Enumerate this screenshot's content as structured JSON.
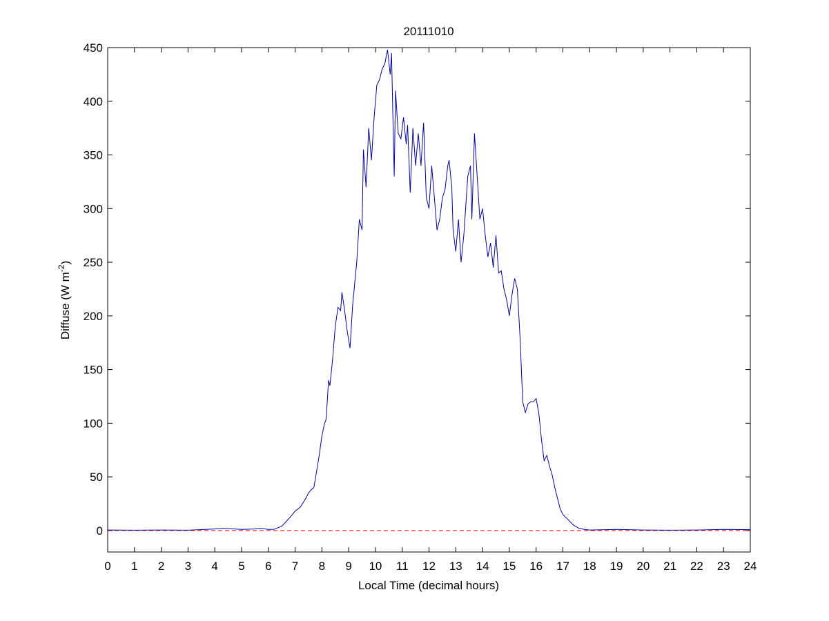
{
  "chart_data": {
    "type": "line",
    "title": "20111010",
    "x_label": "Local Time (decimal hours)",
    "y_label": {
      "text": "Diffuse (W m",
      "superscript": "-2",
      "suffix": ")"
    },
    "color": "#0000b0",
    "x": [
      0,
      1,
      2,
      3,
      4,
      4.3,
      5,
      5.5,
      5.7,
      6,
      6.2,
      6.5,
      6.8,
      7,
      7.2,
      7.4,
      7.5,
      7.6,
      7.7,
      7.8,
      7.9,
      8,
      8.1,
      8.15,
      8.2,
      8.25,
      8.3,
      8.4,
      8.5,
      8.6,
      8.7,
      8.75,
      8.85,
      8.95,
      9.05,
      9.15,
      9.3,
      9.4,
      9.5,
      9.55,
      9.65,
      9.75,
      9.85,
      9.95,
      10.05,
      10.15,
      10.25,
      10.35,
      10.45,
      10.55,
      10.6,
      10.7,
      10.75,
      10.85,
      10.95,
      11.05,
      11.15,
      11.2,
      11.3,
      11.4,
      11.5,
      11.6,
      11.7,
      11.8,
      11.9,
      12,
      12.1,
      12.2,
      12.3,
      12.4,
      12.5,
      12.6,
      12.7,
      12.75,
      12.85,
      12.9,
      13,
      13.1,
      13.2,
      13.3,
      13.45,
      13.55,
      13.6,
      13.7,
      13.8,
      13.9,
      14,
      14.1,
      14.2,
      14.3,
      14.4,
      14.5,
      14.6,
      14.7,
      14.8,
      14.9,
      15,
      15.1,
      15.2,
      15.3,
      15.4,
      15.5,
      15.6,
      15.7,
      15.8,
      15.9,
      16,
      16.1,
      16.2,
      16.3,
      16.4,
      16.5,
      16.6,
      16.7,
      16.8,
      16.9,
      17,
      17.2,
      17.4,
      17.6,
      17.8,
      18,
      19,
      20,
      21,
      22,
      23,
      24
    ],
    "values": [
      0.5,
      0.3,
      0.5,
      0.3,
      1.5,
      2,
      1,
      1.5,
      2,
      1,
      1,
      4,
      12,
      18,
      22,
      30,
      35,
      38,
      40,
      55,
      70,
      88,
      100,
      103,
      120,
      140,
      135,
      160,
      190,
      208,
      205,
      222,
      205,
      185,
      170,
      210,
      250,
      290,
      280,
      355,
      320,
      375,
      345,
      385,
      415,
      420,
      430,
      435,
      448,
      425,
      445,
      330,
      410,
      370,
      365,
      385,
      360,
      378,
      315,
      375,
      340,
      370,
      340,
      380,
      310,
      300,
      340,
      310,
      280,
      290,
      310,
      318,
      340,
      345,
      320,
      280,
      260,
      290,
      250,
      275,
      330,
      340,
      290,
      370,
      330,
      290,
      300,
      275,
      255,
      268,
      245,
      275,
      240,
      242,
      225,
      215,
      200,
      220,
      235,
      225,
      180,
      120,
      110,
      118,
      120,
      120,
      123,
      110,
      85,
      65,
      70,
      60,
      52,
      40,
      30,
      20,
      15,
      10,
      5,
      2,
      1,
      0.5,
      1,
      0.5,
      0.3,
      0.5,
      1,
      0.8
    ],
    "reference_line": {
      "value": 0,
      "color": "#ff0000"
    },
    "xlim": [
      0,
      24
    ],
    "xticks": [
      0,
      1,
      2,
      3,
      4,
      5,
      6,
      7,
      8,
      9,
      10,
      11,
      12,
      13,
      14,
      15,
      16,
      17,
      18,
      19,
      20,
      21,
      22,
      23,
      24
    ],
    "ylim": [
      -20,
      450
    ],
    "yticks": [
      0,
      50,
      100,
      150,
      200,
      250,
      300,
      350,
      400,
      450
    ]
  }
}
